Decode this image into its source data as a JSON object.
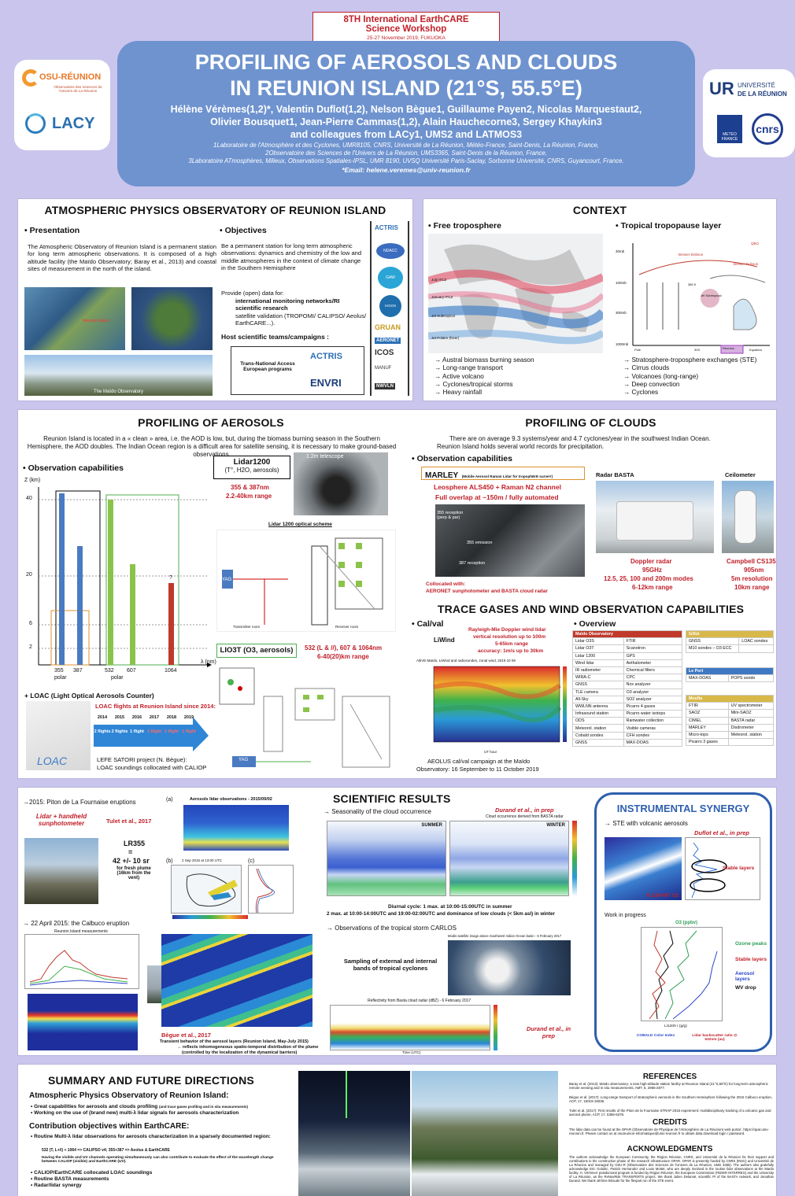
{
  "header": {
    "conf_line1": "8TH International EarthCARE",
    "conf_line2": "Science Workshop",
    "conf_line3": "25-27 November 2019, FUKUOKA",
    "title1": "PROFILING OF AEROSOLS AND CLOUDS",
    "title2": "IN REUNION ISLAND (21°S, 55.5°E)",
    "authors1": "Hélène Vérèmes(1,2)*, Valentin Duflot(1,2), Nelson Bègue1, Guillaume Payen2, Nicolas Marquestaut2,",
    "authors2": "Olivier Bousquet1, Jean-Pierre Cammas(1,2), Alain Hauchecorne3, Sergey Khaykin3",
    "authors3": "and colleagues from LACy1, UMS2 and LATMOS3",
    "aff1": "1Laboratoire de l'Atmosphère et des Cyclones, UMR8105, CNRS, Université de La Réunion, Météo-France, Saint-Denis, La Réunion, France,",
    "aff2": "2Observatoire des Sciences de l'Univers de La Réunion, UMS3365, Saint-Denis de la Réunion, France,",
    "aff3": "3Laboratoire ATmosphères, Milieux, Observations Spatiales-IPSL, UMR 8190, UVSQ Université Paris-Saclay, Sorbonne Université, CNRS, Guyancourt, France.",
    "email": "*Email: helene.veremes@univ-reunion.fr",
    "logo_osu": "OSU-RÉUNION",
    "logo_osu_sub": "Observatoire des Sciences de l'Univers de La Réunion",
    "logo_lacy": "LACY",
    "logo_univ1": "UNIVERSITÉ",
    "logo_univ2": "DE LA RÉUNION",
    "logo_meteo": "METEO FRANCE",
    "logo_cnrs": "cnrs"
  },
  "observatory": {
    "title": "ATMOSPHERIC PHYSICS OBSERVATORY OF REUNION ISLAND",
    "pres_head": "• Presentation",
    "pres_text": "The Atmospheric Observatory of Reunion Island is a permanent station for long term atmospheric observations. It is composed of a high altitude facility (the Maïdo Observatory; Baray et al., 2013) and coastal sites of measurement in the north of the island.",
    "obj_head": "• Objectives",
    "obj_text1": "Be a permanent station for long term atmospheric observations: dynamics and chemistry of the low and middle atmospheres in the context of climate change in the Southern Hemisphere",
    "obj_text2": "Provide (open) data for:",
    "obj_items": [
      "international monitoring networks/RI",
      "scientific research",
      "satellite validation (TROPOMI/ CALIPSO/ Aeolus/ EarthCARE...)."
    ],
    "host": "Host scientific teams/campaigns :",
    "tna": "Trans-National Access European programs",
    "label_reunion": "Réunion Island",
    "label_maido": "The Maïdo Observatory",
    "logos": [
      "ACTRIS",
      "NDACC",
      "GAW",
      "IAGOS",
      "GRUAN",
      "AERONET",
      "ICOS",
      "MANUF",
      "NWVLN"
    ],
    "tna_logos": [
      "ACTRIS",
      "ENVRI"
    ]
  },
  "context": {
    "title": "CONTEXT",
    "ft_head": "• Free troposphere",
    "ttl_head": "• Tropical tropopause layer",
    "ft_items": [
      "→  Austral biomass burning season",
      "→  Long-range transport",
      "→  Active volcano",
      "→  Cyclones/tropical storms",
      "→  Heavy rainfall"
    ],
    "ttl_items": [
      "→  Stratosphere-troposphere exchanges (STE)",
      "→  Cirrus clouds",
      "→  Volcanoes (long-range)",
      "→  Deep convection",
      "→  Cyclones"
    ],
    "map_labels": [
      "July ITCZ",
      "January ITCZ",
      "Jet Subtropical",
      "Jet Polaire (hiver)"
    ],
    "ttl_labels": [
      "30mb",
      "100mb",
      "300mb",
      "1000mb",
      "QBO",
      "Brewer-Dobson",
      "Brewer-Dobson",
      "380 K",
      "Jet Subtropical",
      "Pole",
      "30S",
      "Réunion",
      "Equateur"
    ]
  },
  "aerosols": {
    "title": "PROFILING OF AEROSOLS",
    "intro": "Reunion Island is located in a « clean » area, i.e. the AOD is low, but, during the biomass burning season in the Southern Hemisphere, the AOD doubles. The Indian Ocean region is a difficult area for satellite sensing, it is necessary to make ground-based observations.",
    "obs_head": "• Observation capabilities",
    "zkm": "Z (km)",
    "lambda": "λ (nm)",
    "y_ticks": [
      "40",
      "20",
      "6",
      "2"
    ],
    "x_ticks": [
      "355",
      "387",
      "532",
      "607",
      "1064"
    ],
    "polar1": "polar",
    "polar2": "polar",
    "qmark": "?",
    "lidar1200": "Lidar1200",
    "lidar1200_sub": "(T°, H2O, aerosols)",
    "lidar1200_spec1": "355 & 387nm",
    "lidar1200_spec2": "2.2-40km range",
    "telescope": "1.2m telescope",
    "optical": "Lidar 1200 optical scheme",
    "transmitter": "Transmitter room",
    "receiver": "Receiver room",
    "lio3t": "LIO3T (O3, aerosols)",
    "lio3t_spec1": "532 (L & //), 607 & 1064nm",
    "lio3t_spec2": "6-40(20)km range",
    "loac_head": "+ LOAC (Light Optical Aerosols Counter)",
    "loac_sub": "LOAC flights at Reunion Island since 2014:",
    "years": [
      "2014",
      "2015",
      "2016",
      "2017",
      "2018",
      "2019"
    ],
    "flights": [
      "2 flights",
      "2 flights",
      "1 flight",
      "1 flight",
      "1 flight",
      "1 flight"
    ],
    "loac_label": "LOAC",
    "lefe": "LEFE SATORI project (N. Bègue):",
    "lefe2": "LOAC soundings collocated with CALIOP",
    "yag": "YAG"
  },
  "clouds": {
    "title": "PROFILING OF CLOUDS",
    "intro1": "There are on average 9.3 systems/year and 4.7 cyclones/year in the southwest Indian Ocean.",
    "intro2": "Reunion Island holds several world records for precipitation.",
    "obs_head": "• Observation capabilities",
    "marley": "MARLEY",
    "marley_sub": "(Mobile Aerosol Raman Lidar for tropophErE surveY)",
    "marley_spec1": "Leosphere ALS450 + Raman N2 channel",
    "marley_spec2": "Full overlap at ~150m / fully automated",
    "rec355": "355 reception (perp & par)",
    "em355": "355 emission",
    "rec387": "387 reception",
    "collocated": "Collocated with:",
    "collocated2": "AERONET sunphotometer and BASTA cloud radar",
    "basta": "Radar BASTA",
    "ceilo": "Ceilometer",
    "doppler1": "Doppler radar",
    "doppler2": "95GHz",
    "doppler3": "12.5, 25, 100 and 200m modes",
    "doppler4": "6-12km range",
    "camp1": "Campbell CS135",
    "camp2": "905nm",
    "camp3": "5m resolution",
    "camp4": "10km range"
  },
  "trace": {
    "title": "TRACE GASES AND WIND OBSERVATION CAPABILITIES",
    "calval": "• Cal/val",
    "overview": "• Overview",
    "liwind": "LiWind",
    "liwind_spec1": "Rayleigh-Mie Doppler wind lidar",
    "liwind_spec2": "vertical resolution up to 100m",
    "liwind_spec3": "5-65km range",
    "liwind_spec4": "accuracy: 1m/s up to 30km",
    "chart_title": "AltiVE-Maïdo, LiWind and radiosondes, zonal wind, 2019 10 09",
    "xlabel": "UT hour",
    "ylabel": "Altitude (km)",
    "yticks": [
      "50",
      "45",
      "40",
      "35",
      "30",
      "25",
      "20",
      "15",
      "10",
      "5"
    ],
    "xticks": [
      "14",
      "15",
      "16",
      "17",
      "18",
      "19",
      "20",
      "21",
      "22",
      "23",
      "0",
      "1",
      "2",
      "3"
    ],
    "aeolus1": "AEOLUS cal/val campaign at the Maïdo",
    "aeolus2": "Observatory: 16 September to 11 October 2019",
    "maido_head": "Maïdo Observatory",
    "maido_rows": [
      [
        "Lidar O3S",
        "FTIR"
      ],
      [
        "Lidar O3T",
        "Scanotron"
      ],
      [
        "Lidar 1200",
        "GPS"
      ],
      [
        "Wind lidar",
        "Aethalometer"
      ],
      [
        "IR radiometer",
        "Chemical filters"
      ],
      [
        "WIRA-C",
        "CPC"
      ],
      [
        "GNSS",
        "Nox analyzer"
      ],
      [
        "TLE camera",
        "O3 analyzer"
      ],
      [
        "All-Sky",
        "SO2 analyzer"
      ],
      [
        "WWLNN antenna",
        "Picarro 4 gases"
      ],
      [
        "Infrasound station",
        "Picarro water isotops"
      ],
      [
        "ODS",
        "Rainwater collection"
      ],
      [
        "Meteorol. station",
        "Visible cameras"
      ],
      [
        "Cobald sondes",
        "CFH sondes"
      ],
      [
        "GNSS",
        "MAX-DOAS"
      ]
    ],
    "gillot_head": "Gillot",
    "gillot_rows": [
      [
        "GNSS",
        "LOAC sondes"
      ],
      [
        "M10 sondes – O3 ECC",
        ""
      ]
    ],
    "port_head": "Le Port",
    "port_rows": [
      [
        "MAX-DOAS",
        "POPS sonde"
      ]
    ],
    "moufia_head": "Moufia",
    "moufia_rows": [
      [
        "FTIR",
        "UV spectrometer"
      ],
      [
        "SAOZ",
        "Mini-SAOZ"
      ],
      [
        "CIMEL",
        "BASTA radar"
      ],
      [
        "MARLEY",
        "Disdrometer"
      ],
      [
        "Micro-tops",
        "Meteorol. station"
      ],
      [
        "Picarro 3 gases",
        ""
      ]
    ]
  },
  "results": {
    "title": "SCIENTIFIC RESULTS",
    "fournaise": "→2015: Piton de La Fournaise eruptions",
    "lidar_handheld": "Lidar + handheld sunphotometer",
    "tulet": "Tulet et al., 2017",
    "lr1": "LR355",
    "lr2": "=",
    "lr3": "42 +/- 10 sr",
    "lr4": "for fresh plume (16km from the vent)",
    "aerosol_obs": "Aerosols lidar observations - 2015/09/02",
    "sep2": "2 Sep 2015 at 13:00 UTC",
    "panel_a": "(a)",
    "panel_b": "(b)",
    "panel_c": "(c)",
    "calbuco": "→ 22 April 2015: the Calbuco eruption",
    "reunion_obs": "Reunion Island measurements",
    "begue": "Bègue et al., 2017",
    "transient1": "Transient behavior of the aerosol layers (Reunion Island, May-July 2015)",
    "transient2": "→ reflects inhomogeneous spatio-temporal distribution of the plume",
    "transient3": "(controlled by the localization of the dynamical barriers)",
    "season": "→  Seasonality of the cloud occurrence",
    "durand": "Durand et al., in prep",
    "cloud_occ": "Cloud occurrence derived from BASTA radar",
    "summer": "SUMMER",
    "winter": "WINTER",
    "diurnal1": "Diurnal cycle: 1 max. at 10:00-15:00UTC in summer",
    "diurnal2": "2 max. at 10:00-14:00UTC and 19:00-02:00UTC and dominance of low clouds  (< 5km asl) in winter",
    "carlos": "→  Observations of the tropical storm CARLOS",
    "sampling": "Sampling of external and internal bands of tropical cyclones",
    "modis": "Modis satellite image above Southwest Indian Ocean basin - 6 February 2017",
    "reflect": "Reflectivity from Basta cloud radar (dBZ) - 6 February 2017",
    "durand2": "Durand et al., in prep",
    "time_utc": "Time (UTC)"
  },
  "synergy": {
    "title": "INSTRUMENTAL SYNERGY",
    "ste": "→  STE with volcanic aerosols",
    "duflot": "Duflot et al., in prep",
    "flexpart": "FLEXPART O3",
    "stable": "Stable layers",
    "wip": "Work in progress",
    "o3": "O3 (ppbv)",
    "labels": [
      "Ozone peaks",
      "Stable layers",
      "Aerosol layers",
      "WV drop"
    ],
    "cobald": "COBALD Color Index",
    "lidar_bs": "Lidar backscatter ratio @ 532nm (au)",
    "li1200": "LI1200 r (g/g)",
    "alt": "Altitude (km)",
    "bv": "Brunt-Vaisala frequency (Hz)"
  },
  "summary": {
    "title": "SUMMARY AND FUTURE DIRECTIONS",
    "h1": "Atmospheric Physics Observatory of Reunion Island:",
    "i1": "Great capabilities for aerosols and clouds profiling",
    "i1b": "(and trace gases profiling and in situ measurements)",
    "i2": "Working on the use of (brand new) multi-λ lidar signals for aerosols characterization",
    "h2": "Contribution objectives within EarthCARE:",
    "i3": "Routine Multi-λ lidar observations for aerosols characterization in a sparsely documented region:",
    "i3a": "532 (T, L+//) + 1064 => CALIPSO v4; 355+387 => Aeolus & EarthCARE",
    "i3b": "Having the visible and UV channels operating simultaneously can also contribute to evaluate the effect of the wavelength change between CALIOP (visible) and EarthCARE (UV).",
    "i4": "CALIOP/EarthCARE collocated LOAC soundings",
    "i5": "Routine BASTA measurements",
    "i6": "Radar/lidar synergy"
  },
  "refs": {
    "title": "REFERENCES",
    "r1": "Baray et al. (2013): Maïdo observatory: a new high-altitude station facility at Reunion Island (21°S,55°E) for long-term atmospheric remote sensing and in situ measurements, AMT, 6, 2865-2877.",
    "r2": "Bègue et al. (2017): Long-range transport of stratospheric aerosols in the Southern Hemisphere following the 2015 Calbuco eruption, ACP, 17, 15019-15036.",
    "r3": "Tulet et al. (2017): First results of the Piton de la Fournaise STRAP 2015 experiment: multidisciplinary tracking of a volcanic gas and aerosol plume, ACP, 17, 5355-5378.",
    "data": "The lidar data can be found at the OPAR (Observatoire de Physique de l'Atmosphère de La Réunion) web portal : https://opar.univ-reunion.fr. Please contact us at osureunion-informatique@univ-reunion.fr to obtain data download login / password.",
    "credits": "CREDITS",
    "ack": "ACKNOWLEDGMENTS",
    "ack_text": "The authors acknowledge the European Community, the Région Réunion, CNRS, and Université de la Réunion for their support and contributions in the construction phase of the research infrastructure OPAR. OPAR is presently funded by CNRS (INSU) and Université de La Réunion and managed by OSU-R (Observatoire des Sciences de l'Univers de La Réunion, UMS 3365). The authors also gratefully acknowledge Eric Golubic, Patrick Hernandez and Louis Mottet, who are deeply involved in the routine lidar observations at the Maïdo facility. H. Vérèmes' postdoctoral program is funded by Région Réunion, the European Commission (FEDER INTERREG) and the University of La Réunion, as the ReNovRisk TRANSFERTS project. We thank Julien Delanoë, scientific PI of the BASTA network, and Jonathan Durand. We thank Jérôme Brioude for the flexpart run of the STE event."
  },
  "colors": {
    "bg": "#c9c5ec",
    "header": "#6e93cf",
    "accent": "#c0202a",
    "blue": "#3e78c2",
    "green": "#8cc34a",
    "red": "#c0392b"
  }
}
